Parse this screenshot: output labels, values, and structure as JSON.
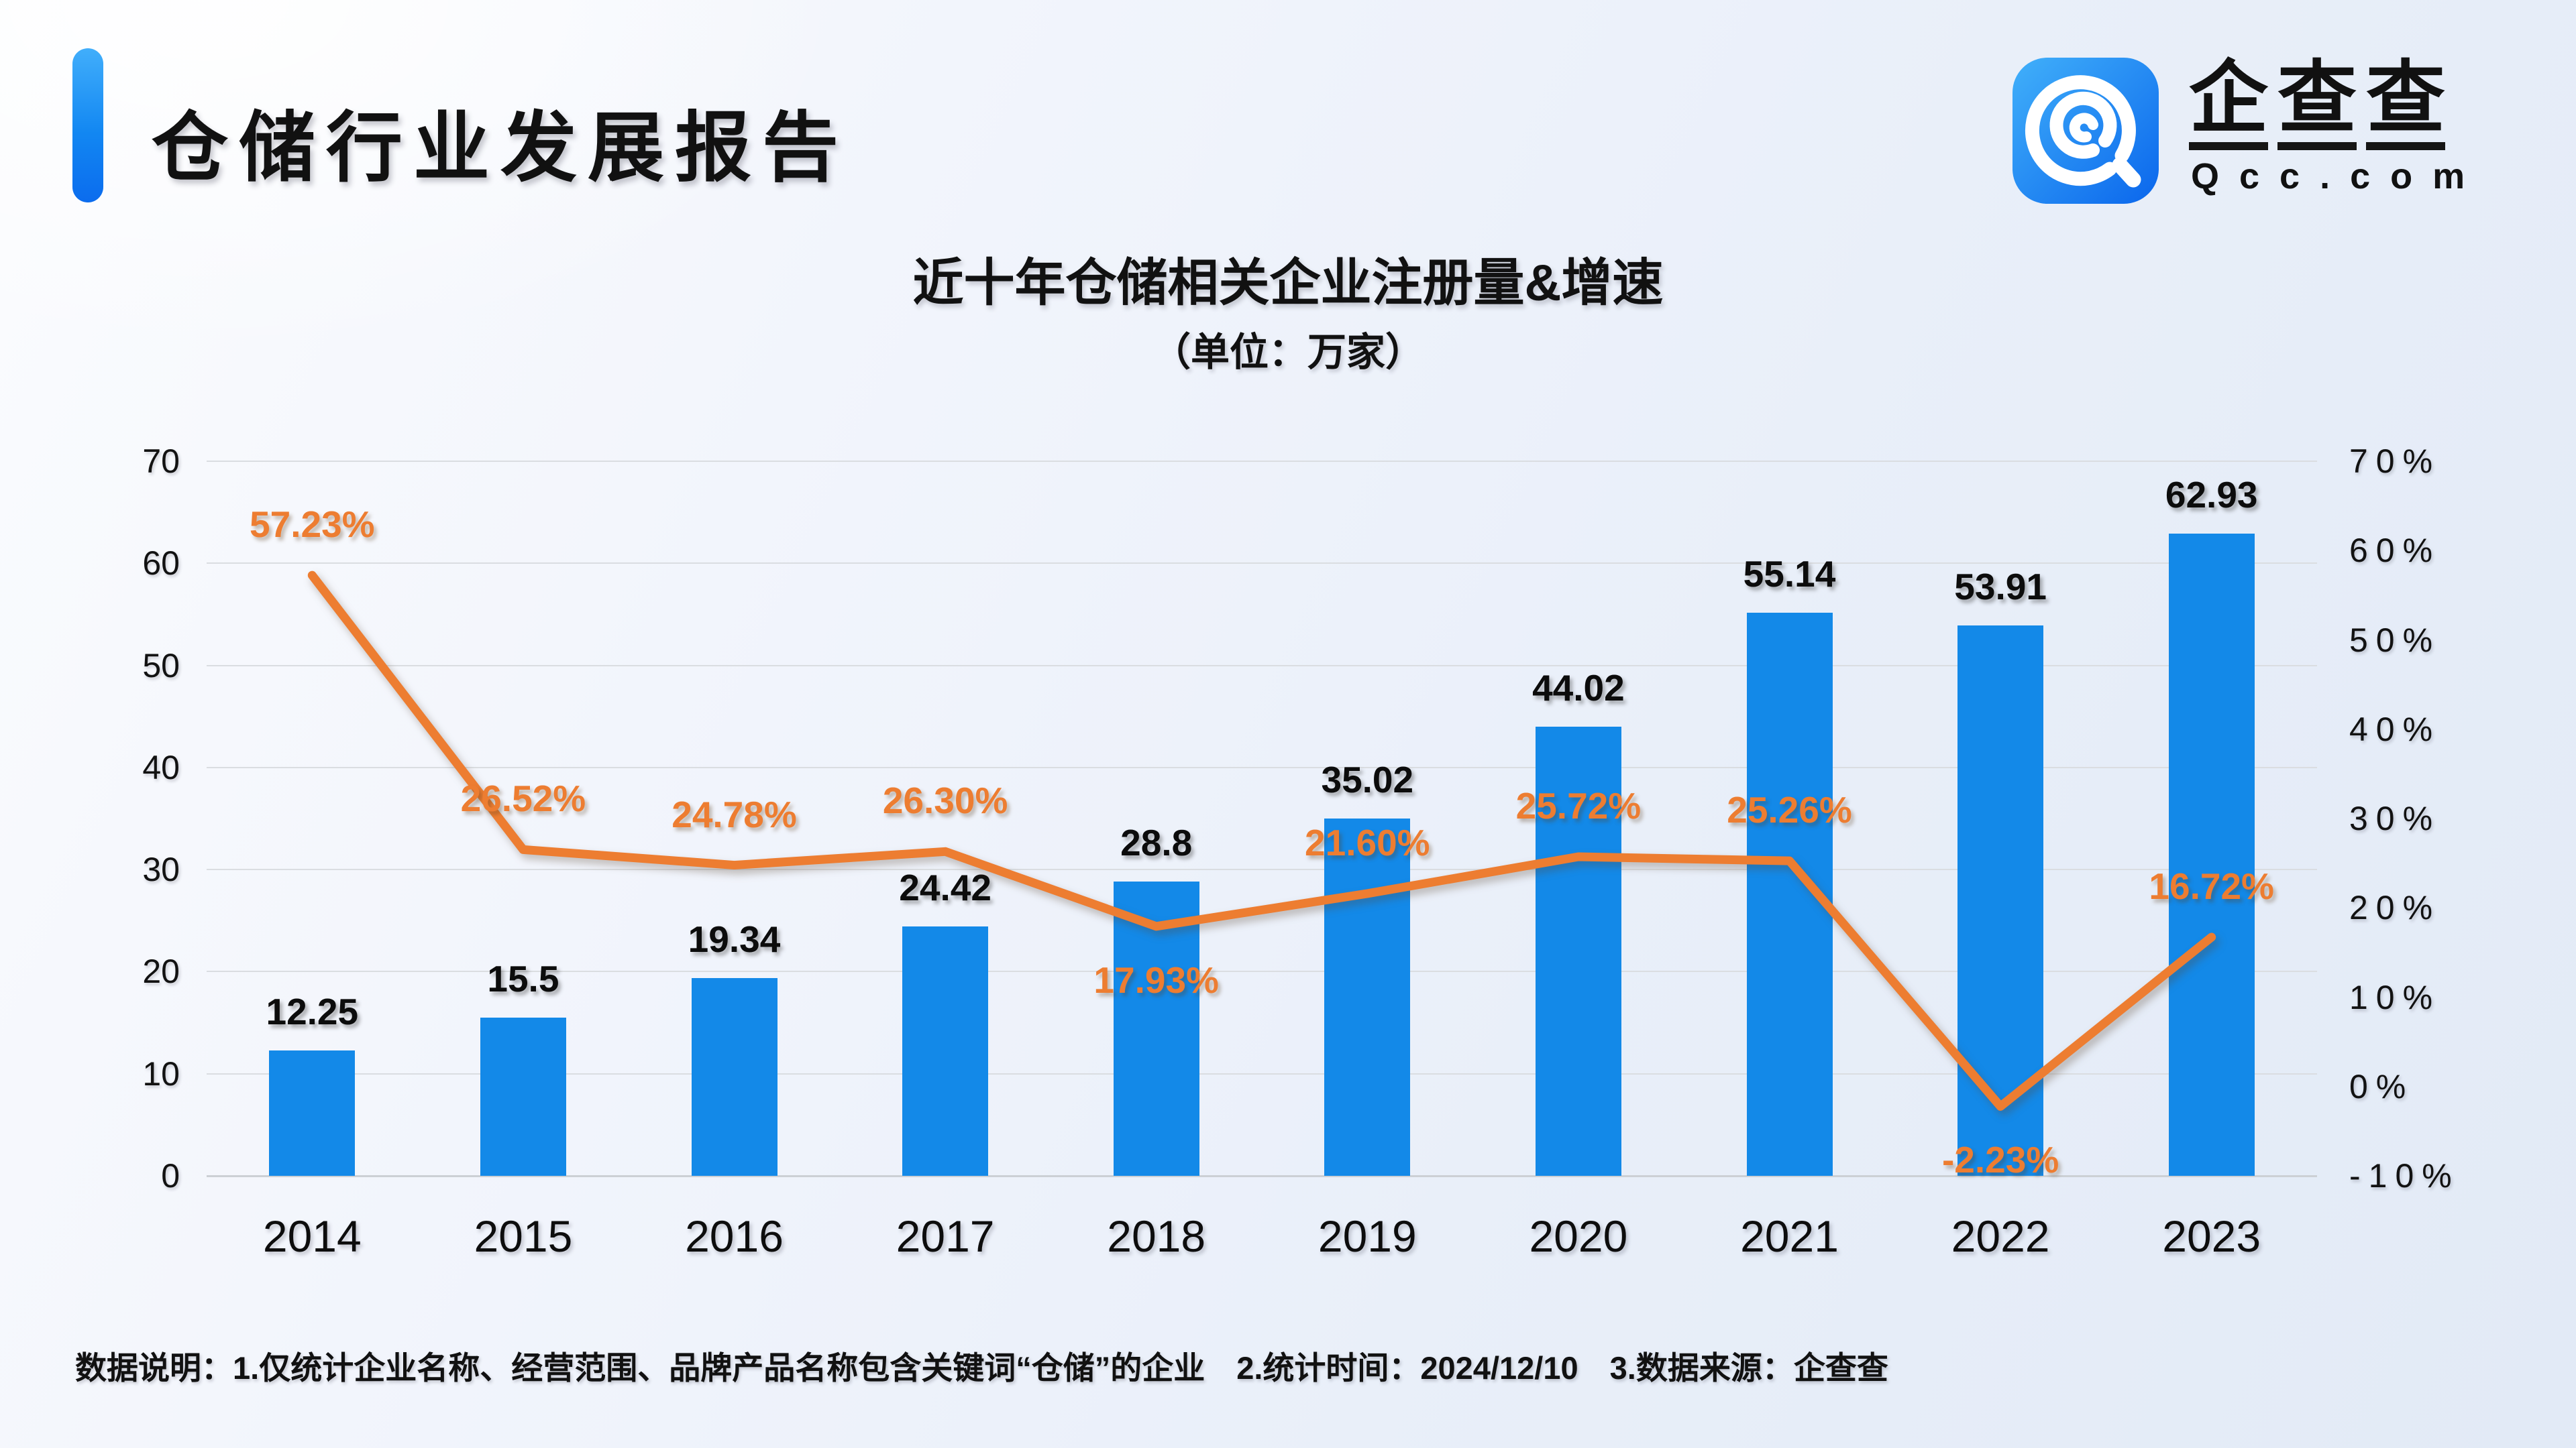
{
  "header": {
    "title": "仓储行业发展报告"
  },
  "logo": {
    "brand": "企查查",
    "domain": "Qcc.com"
  },
  "chart": {
    "title": "近十年仓储相关企业注册量&增速",
    "subtitle": "（单位：万家）"
  },
  "colors": {
    "bar_blue": "#1389e8",
    "line_orange": "#ed7d31",
    "accent_blue_top": "#41aefb",
    "accent_blue_bottom": "#0b6cee",
    "gridline": "#dadde1",
    "text": "#111111"
  },
  "chart_data": {
    "type": "bar",
    "subtype": "bar+line combo",
    "categories": [
      "2014",
      "2015",
      "2016",
      "2017",
      "2018",
      "2019",
      "2020",
      "2021",
      "2022",
      "2023"
    ],
    "series": [
      {
        "name": "注册量（万家）",
        "type": "bar",
        "axis": "left",
        "color": "#1389e8",
        "values": [
          12.25,
          15.5,
          19.34,
          24.42,
          28.8,
          35.02,
          44.02,
          55.14,
          53.91,
          62.93
        ],
        "labels": [
          "12.25",
          "15.5",
          "19.34",
          "24.42",
          "28.8",
          "35.02",
          "44.02",
          "55.14",
          "53.91",
          "62.93"
        ]
      },
      {
        "name": "增速",
        "type": "line",
        "axis": "right",
        "color": "#ed7d31",
        "values": [
          57.23,
          26.52,
          24.78,
          26.3,
          17.93,
          21.6,
          25.72,
          25.26,
          -2.23,
          16.72
        ],
        "labels": [
          "57.23%",
          "26.52%",
          "24.78%",
          "26.30%",
          "17.93%",
          "21.60%",
          "25.72%",
          "25.26%",
          "-2.23%",
          "16.72%"
        ],
        "label_below": [
          false,
          false,
          false,
          false,
          true,
          false,
          false,
          false,
          true,
          false
        ]
      }
    ],
    "left_axis": {
      "min": 0,
      "max": 70,
      "step": 10,
      "ticks": [
        "0",
        "10",
        "20",
        "30",
        "40",
        "50",
        "60",
        "70"
      ]
    },
    "right_axis": {
      "min": -10,
      "max": 70,
      "step": 10,
      "ticks": [
        "-10%",
        "0%",
        "10%",
        "20%",
        "30%",
        "40%",
        "50%",
        "60%",
        "70%"
      ]
    },
    "grid": true,
    "legend": "none",
    "title": "近十年仓储相关企业注册量&增速",
    "xlabel": "",
    "ylabel_left": "万家",
    "ylabel_right": "%"
  },
  "footer": {
    "note": "数据说明：1.仅统计企业名称、经营范围、品牌产品名称包含关键词“仓储”的企业　2.统计时间：2024/12/10　3.数据来源：企查查"
  }
}
